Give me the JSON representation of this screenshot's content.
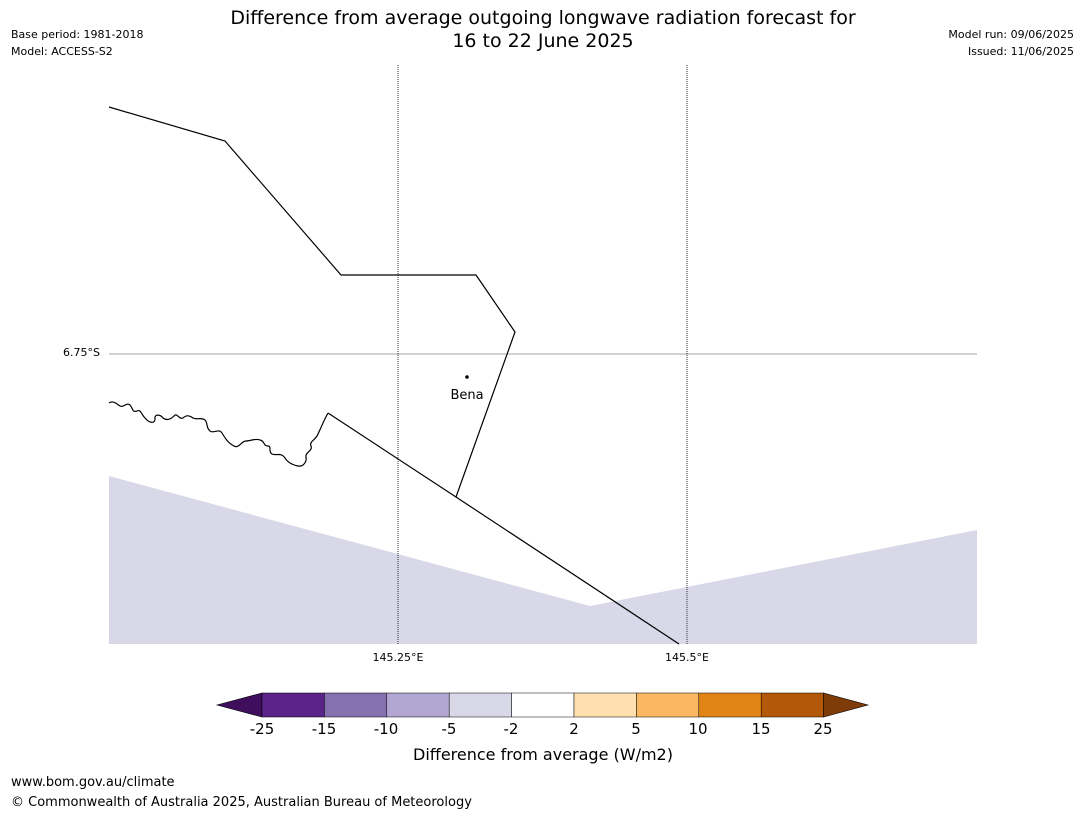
{
  "header": {
    "title_line1": "Difference from average outgoing longwave radiation forecast for",
    "title_line2": "16 to 22 June 2025",
    "base_period": "Base period: 1981-2018",
    "model": "Model: ACCESS-S2",
    "model_run": "Model run: 09/06/2025",
    "issued": "Issued: 11/06/2025"
  },
  "map": {
    "lon_labels": [
      "145.25°E",
      "145.5°E"
    ],
    "lat_label": "6.75°S",
    "place": "Bena",
    "shading_category": "-5 to -2",
    "colors": {
      "shading": "#d8d8e9",
      "boundary": "#000000",
      "gridline": "#000000"
    }
  },
  "colorbar": {
    "ticks": [
      "-25",
      "-15",
      "-10",
      "-5",
      "-2",
      "2",
      "5",
      "10",
      "15",
      "25"
    ],
    "colors": [
      "#3f0f5e",
      "#5a2389",
      "#8570b0",
      "#b1a7d2",
      "#d8d8e9",
      "#ffffff",
      "#fedfb0",
      "#fbb863",
      "#e38515",
      "#b35807",
      "#7f3b08"
    ],
    "label": "Difference from average (W/m2)"
  },
  "footer": {
    "url": "www.bom.gov.au/climate",
    "copyright": "© Commonwealth of Australia 2025, Australian Bureau of Meteorology"
  }
}
